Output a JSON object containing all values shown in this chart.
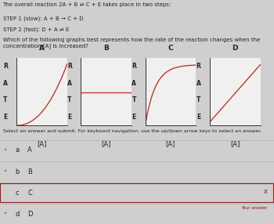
{
  "title_text": "The overall reaction 2A + B ⇌ C + E takes place in two steps:",
  "step1": "STEP 1 (slow): A + B → C + D",
  "step2": "STEP 2 (fast): D + A ⇌ E",
  "question": "Which of the following graphs best represents how the rate of the reaction changes when the concentration [A] is increased?",
  "graph_labels": [
    "A",
    "B",
    "C",
    "D"
  ],
  "xlabel": "[A]",
  "ylabel_letters": [
    "R",
    "A",
    "T",
    "E"
  ],
  "answer_letters": [
    "a",
    "b",
    "c",
    "d"
  ],
  "answer_labels": [
    "A",
    "B",
    "C",
    "D"
  ],
  "selected_answer_idx": 2,
  "bg_color": "#d0cece",
  "graph_bg": "#f0f0f0",
  "line_color": "#c0392b",
  "axes_color": "#333333",
  "selected_bg": "#7b1a1a",
  "x_mark_color": "#7b1a1a",
  "your_answer_color": "#7b1a1a",
  "text_color": "#222222",
  "title_font": 5.0,
  "answer_font": 6.0,
  "graph_label_font": 6.5,
  "note_font": 4.5,
  "row_bg_color": "#dcdcdc",
  "note_text": "Select an answer and submit. For keyboard navigation, use the up/down arrow keys to select an answer."
}
